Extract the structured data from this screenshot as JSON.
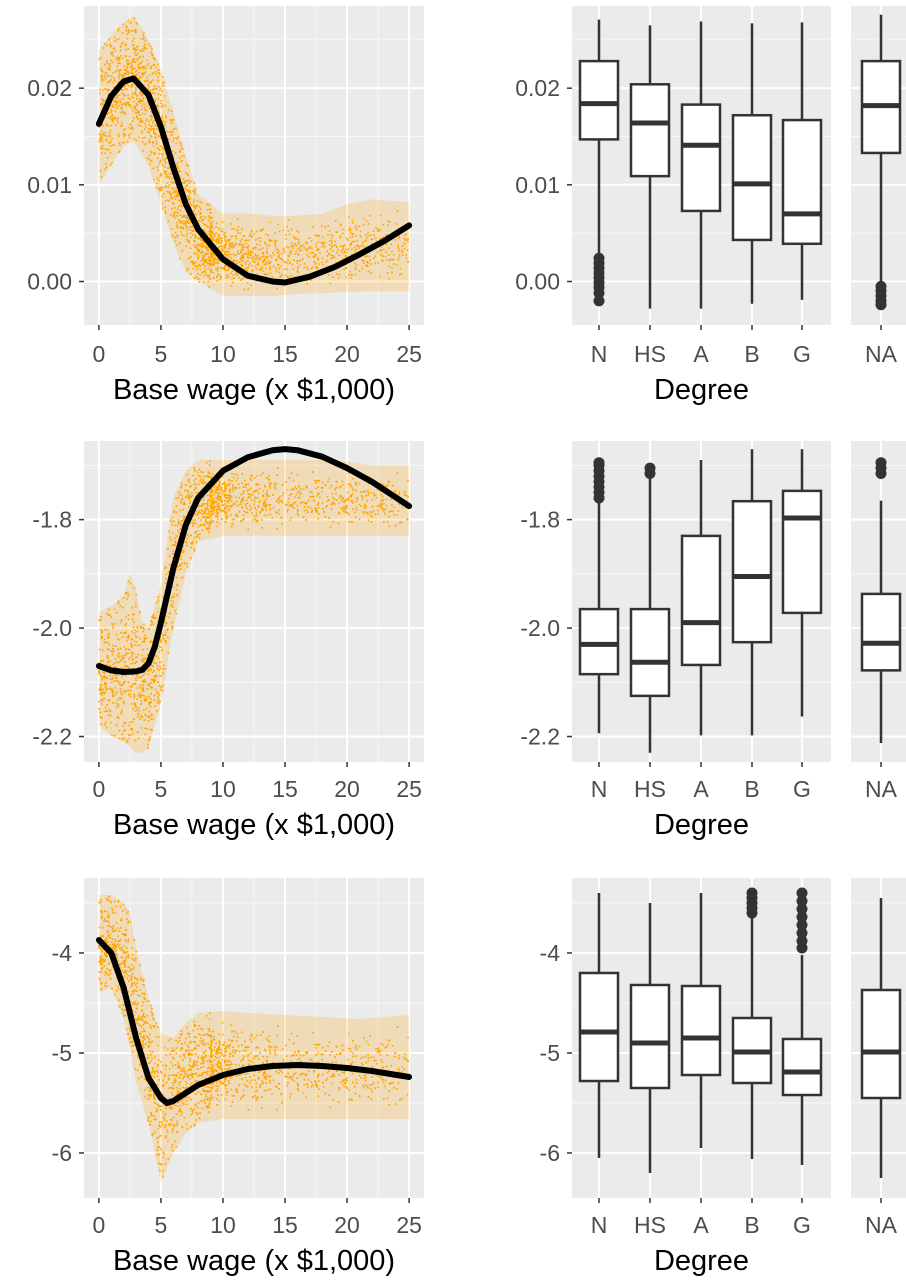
{
  "colors": {
    "panel": "#ebebeb",
    "grid": "#ffffff",
    "points": "#ffa500",
    "line": "#000000",
    "box_stroke": "#333333"
  },
  "chart_data": [
    {
      "type": "scatter",
      "xlabel": "Base wage (x $1,000)",
      "xlim": [
        -1.2,
        26.2
      ],
      "ylim": [
        -0.0045,
        0.0285
      ],
      "x_ticks": [
        0,
        5,
        10,
        15,
        20,
        25
      ],
      "y_ticks": [
        0.0,
        0.01,
        0.02
      ],
      "y_tick_labels": [
        "0.00",
        "0.01",
        "0.02"
      ],
      "smooth": {
        "x": [
          0,
          1,
          2,
          2.8,
          4,
          5,
          6,
          7,
          8,
          10,
          12,
          14,
          15,
          17,
          19,
          21,
          23,
          25
        ],
        "y": [
          0.0163,
          0.0192,
          0.0207,
          0.021,
          0.0193,
          0.016,
          0.0118,
          0.008,
          0.0054,
          0.0023,
          0.0006,
          0.0,
          -0.0001,
          0.0005,
          0.0015,
          0.0028,
          0.0042,
          0.0058
        ]
      },
      "cloud": {
        "x": [
          0,
          1,
          2,
          2.8,
          4,
          5,
          6,
          7,
          8,
          10,
          12,
          14,
          16,
          18,
          20,
          22,
          25
        ],
        "upper": [
          0.024,
          0.0255,
          0.0268,
          0.0275,
          0.025,
          0.022,
          0.0175,
          0.013,
          0.009,
          0.007,
          0.007,
          0.0068,
          0.0068,
          0.007,
          0.008,
          0.0085,
          0.0082
        ],
        "lower": [
          0.01,
          0.012,
          0.014,
          0.0145,
          0.012,
          0.008,
          0.004,
          0.001,
          0.0,
          -0.0015,
          -0.0015,
          -0.0015,
          -0.0013,
          -0.0012,
          -0.0011,
          -0.001,
          -0.001
        ]
      }
    },
    {
      "type": "box",
      "xlabel": "Degree",
      "ylim": [
        -0.0045,
        0.0285
      ],
      "y_ticks": [
        0.0,
        0.01,
        0.02
      ],
      "y_tick_labels": [
        "0.00",
        "0.01",
        "0.02"
      ],
      "categories": [
        "N",
        "HS",
        "A",
        "B",
        "G"
      ],
      "na_label": "NA",
      "boxes": [
        {
          "label": "N",
          "lower": -0.0021,
          "q1": 0.0147,
          "median": 0.0184,
          "q3": 0.0228,
          "upper": 0.0271,
          "outliers": [
            0.0024,
            0.0019,
            0.0014,
            0.0009,
            0.0004,
            -0.0001,
            -0.0006,
            -0.0012,
            -0.002
          ]
        },
        {
          "label": "HS",
          "lower": -0.0028,
          "q1": 0.0109,
          "median": 0.0164,
          "q3": 0.0204,
          "upper": 0.0265,
          "outliers": []
        },
        {
          "label": "A",
          "lower": -0.0028,
          "q1": 0.0073,
          "median": 0.0141,
          "q3": 0.0183,
          "upper": 0.0269,
          "outliers": []
        },
        {
          "label": "B",
          "lower": -0.0023,
          "q1": 0.0043,
          "median": 0.0101,
          "q3": 0.0172,
          "upper": 0.0267,
          "outliers": []
        },
        {
          "label": "G",
          "lower": -0.0019,
          "q1": 0.0039,
          "median": 0.007,
          "q3": 0.0167,
          "upper": 0.0268,
          "outliers": []
        }
      ],
      "na_box": {
        "label": "NA",
        "lower": -0.0024,
        "q1": 0.0133,
        "median": 0.0182,
        "q3": 0.0228,
        "upper": 0.0276,
        "outliers": [
          -0.0005,
          -0.001,
          -0.0015,
          -0.002,
          -0.0024
        ]
      }
    },
    {
      "type": "scatter",
      "xlabel": "Base wage (x $1,000)",
      "xlim": [
        -1.2,
        26.2
      ],
      "ylim": [
        -2.247,
        -1.655
      ],
      "x_ticks": [
        0,
        5,
        10,
        15,
        20,
        25
      ],
      "y_ticks": [
        -2.2,
        -2.0,
        -1.8
      ],
      "y_tick_labels": [
        "-2.2",
        "-2.0",
        "-1.8"
      ],
      "smooth": {
        "x": [
          0,
          1,
          2,
          3,
          3.5,
          4,
          4.5,
          5,
          6,
          7,
          8,
          10,
          12,
          14,
          15,
          16,
          18,
          20,
          22,
          25
        ],
        "y": [
          -2.07,
          -2.078,
          -2.081,
          -2.08,
          -2.077,
          -2.065,
          -2.035,
          -1.99,
          -1.89,
          -1.81,
          -1.76,
          -1.71,
          -1.685,
          -1.672,
          -1.67,
          -1.672,
          -1.684,
          -1.705,
          -1.73,
          -1.775
        ]
      },
      "cloud": {
        "x": [
          0,
          1,
          2,
          2.5,
          3,
          3.5,
          4,
          5,
          6,
          7,
          8,
          10,
          13,
          16,
          19,
          22,
          25
        ],
        "upper": [
          -1.97,
          -1.96,
          -1.94,
          -1.9,
          -1.93,
          -1.99,
          -2.0,
          -1.92,
          -1.76,
          -1.71,
          -1.69,
          -1.69,
          -1.69,
          -1.69,
          -1.69,
          -1.7,
          -1.7
        ],
        "lower": [
          -2.18,
          -2.2,
          -2.21,
          -2.22,
          -2.23,
          -2.23,
          -2.22,
          -2.14,
          -2.0,
          -1.9,
          -1.84,
          -1.83,
          -1.83,
          -1.83,
          -1.83,
          -1.83,
          -1.83
        ]
      }
    },
    {
      "type": "box",
      "xlabel": "Degree",
      "ylim": [
        -2.247,
        -1.655
      ],
      "y_ticks": [
        -2.2,
        -2.0,
        -1.8
      ],
      "y_tick_labels": [
        "-2.2",
        "-2.0",
        "-1.8"
      ],
      "categories": [
        "N",
        "HS",
        "A",
        "B",
        "G"
      ],
      "na_label": "NA",
      "boxes": [
        {
          "label": "N",
          "lower": -2.194,
          "q1": -2.085,
          "median": -2.03,
          "q3": -1.965,
          "upper": -1.765,
          "outliers": [
            -1.76,
            -1.75,
            -1.74,
            -1.73,
            -1.72,
            -1.71,
            -1.7,
            -1.695
          ]
        },
        {
          "label": "HS",
          "lower": -2.23,
          "q1": -2.125,
          "median": -2.063,
          "q3": -1.965,
          "upper": -1.71,
          "outliers": [
            -1.705,
            -1.715
          ]
        },
        {
          "label": "A",
          "lower": -2.198,
          "q1": -2.068,
          "median": -1.99,
          "q3": -1.83,
          "upper": -1.69,
          "outliers": []
        },
        {
          "label": "B",
          "lower": -2.198,
          "q1": -2.026,
          "median": -1.905,
          "q3": -1.766,
          "upper": -1.67,
          "outliers": []
        },
        {
          "label": "G",
          "lower": -2.163,
          "q1": -1.972,
          "median": -1.797,
          "q3": -1.747,
          "upper": -1.67,
          "outliers": []
        }
      ],
      "na_box": {
        "label": "NA",
        "lower": -2.212,
        "q1": -2.078,
        "median": -2.028,
        "q3": -1.937,
        "upper": -1.765,
        "outliers": [
          -1.695,
          -1.705,
          -1.715
        ]
      }
    },
    {
      "type": "scatter",
      "xlabel": "Base wage (x $1,000)",
      "xlim": [
        -1.2,
        26.2
      ],
      "ylim": [
        -6.45,
        -3.25
      ],
      "x_ticks": [
        0,
        5,
        10,
        15,
        20,
        25
      ],
      "y_ticks": [
        -6,
        -5,
        -4
      ],
      "y_tick_labels": [
        "-6",
        "-5",
        "-4"
      ],
      "smooth": {
        "x": [
          0,
          1,
          2,
          3,
          4,
          5,
          5.5,
          6,
          7,
          8,
          10,
          12,
          14,
          16,
          18,
          20,
          22,
          25
        ],
        "y": [
          -3.87,
          -4.0,
          -4.35,
          -4.85,
          -5.25,
          -5.45,
          -5.5,
          -5.48,
          -5.4,
          -5.32,
          -5.22,
          -5.16,
          -5.13,
          -5.12,
          -5.13,
          -5.15,
          -5.18,
          -5.24
        ]
      },
      "cloud": {
        "x": [
          0,
          1,
          2,
          2.5,
          3,
          4,
          5,
          6,
          7,
          8,
          10,
          12,
          15,
          18,
          21,
          25
        ],
        "upper": [
          -3.42,
          -3.42,
          -3.5,
          -3.6,
          -3.95,
          -4.45,
          -4.8,
          -4.85,
          -4.7,
          -4.6,
          -4.58,
          -4.6,
          -4.62,
          -4.64,
          -4.66,
          -4.62
        ],
        "lower": [
          -4.4,
          -4.35,
          -4.65,
          -4.95,
          -5.3,
          -5.7,
          -6.3,
          -6.0,
          -5.8,
          -5.7,
          -5.66,
          -5.66,
          -5.66,
          -5.66,
          -5.66,
          -5.66
        ]
      }
    },
    {
      "type": "box",
      "xlabel": "Degree",
      "ylim": [
        -6.45,
        -3.25
      ],
      "y_ticks": [
        -6,
        -5,
        -4
      ],
      "y_tick_labels": [
        "-6",
        "-5",
        "-4"
      ],
      "categories": [
        "N",
        "HS",
        "A",
        "B",
        "G"
      ],
      "na_label": "NA",
      "boxes": [
        {
          "label": "N",
          "lower": -6.05,
          "q1": -5.28,
          "median": -4.79,
          "q3": -4.2,
          "upper": -3.4,
          "outliers": []
        },
        {
          "label": "HS",
          "lower": -6.2,
          "q1": -5.35,
          "median": -4.9,
          "q3": -4.32,
          "upper": -3.5,
          "outliers": []
        },
        {
          "label": "A",
          "lower": -5.95,
          "q1": -5.22,
          "median": -4.85,
          "q3": -4.33,
          "upper": -3.4,
          "outliers": []
        },
        {
          "label": "B",
          "lower": -6.06,
          "q1": -5.3,
          "median": -4.99,
          "q3": -4.65,
          "upper": -3.62,
          "outliers": [
            -3.6,
            -3.55,
            -3.5,
            -3.45,
            -3.4
          ]
        },
        {
          "label": "G",
          "lower": -6.12,
          "q1": -5.42,
          "median": -5.19,
          "q3": -4.86,
          "upper": -4.02,
          "outliers": [
            -3.95,
            -3.88,
            -3.8,
            -3.72,
            -3.64,
            -3.56,
            -3.48,
            -3.4
          ]
        }
      ],
      "na_box": {
        "label": "NA",
        "lower": -6.25,
        "q1": -5.45,
        "median": -4.99,
        "q3": -4.37,
        "upper": -3.45,
        "outliers": []
      }
    }
  ]
}
